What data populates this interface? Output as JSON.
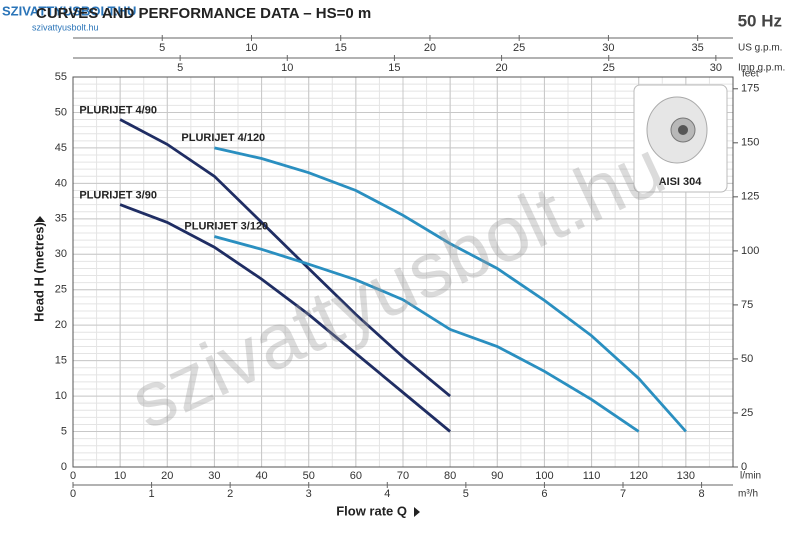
{
  "chart_data": {
    "type": "line",
    "title": "CURVES AND PERFORMANCE DATA  –  HS=0 m",
    "frequency": "50 Hz",
    "logo": "SZIVATTYUSBOLT.HU",
    "logo_url": "szivattyusbolt.hu",
    "watermark": "szivattyusbolt.hu",
    "inset_label": "AISI 304",
    "xlabel": "Flow rate Q",
    "xunit": "l/min",
    "ylabel": "Head H (metres)",
    "y2label": "feet",
    "xlim": [
      0,
      140
    ],
    "xticks": [
      0,
      10,
      20,
      30,
      40,
      50,
      60,
      70,
      80,
      90,
      100,
      110,
      120,
      130
    ],
    "ylim": [
      0,
      55
    ],
    "yticks": [
      0,
      5,
      10,
      15,
      20,
      25,
      30,
      35,
      40,
      45,
      50,
      55
    ],
    "y2lim": [
      0,
      180.45
    ],
    "y2ticks": [
      0,
      25,
      50,
      75,
      100,
      125,
      150,
      175
    ],
    "grid": true,
    "extra_x_axes": [
      {
        "label": "US g.p.m.",
        "position": "top",
        "xlim": [
          0,
          36.98
        ],
        "xticks": [
          5,
          10,
          15,
          20,
          25,
          30,
          35
        ]
      },
      {
        "label": "Imp g.p.m.",
        "position": "top",
        "xlim": [
          0,
          30.8
        ],
        "xticks": [
          5,
          10,
          15,
          20,
          25,
          30
        ]
      },
      {
        "label": "m³/h",
        "position": "bottom",
        "xlim": [
          0,
          8.4
        ],
        "xticks": [
          0,
          1,
          2,
          3,
          4,
          5,
          6,
          7,
          8
        ]
      }
    ],
    "series": [
      {
        "name": "PLURIJET 4/90",
        "color": "#1f2d63",
        "x": [
          10,
          20,
          30,
          40,
          50,
          60,
          70,
          80
        ],
        "values": [
          49,
          45.5,
          41,
          34.5,
          28,
          21.5,
          15.5,
          10
        ]
      },
      {
        "name": "PLURIJET 3/90",
        "color": "#1f2d63",
        "x": [
          10,
          20,
          30,
          40,
          50,
          60,
          70,
          80
        ],
        "values": [
          37,
          34.5,
          31,
          26.5,
          21.5,
          16,
          10.5,
          5
        ]
      },
      {
        "name": "PLURIJET 4/120",
        "color": "#2a8fc0",
        "x": [
          30,
          40,
          50,
          60,
          70,
          80,
          90,
          100,
          110,
          120,
          130
        ],
        "values": [
          45,
          43.5,
          41.5,
          39,
          35.5,
          31.5,
          28,
          23.5,
          18.5,
          12.5,
          5
        ]
      },
      {
        "name": "PLURIJET 3/120",
        "color": "#2a8fc0",
        "x": [
          30,
          40,
          50,
          60,
          70,
          80,
          90,
          100,
          110,
          120
        ],
        "values": [
          32.5,
          30.7,
          28.6,
          26.4,
          23.6,
          19.4,
          17,
          13.5,
          9.5,
          5
        ]
      }
    ]
  }
}
